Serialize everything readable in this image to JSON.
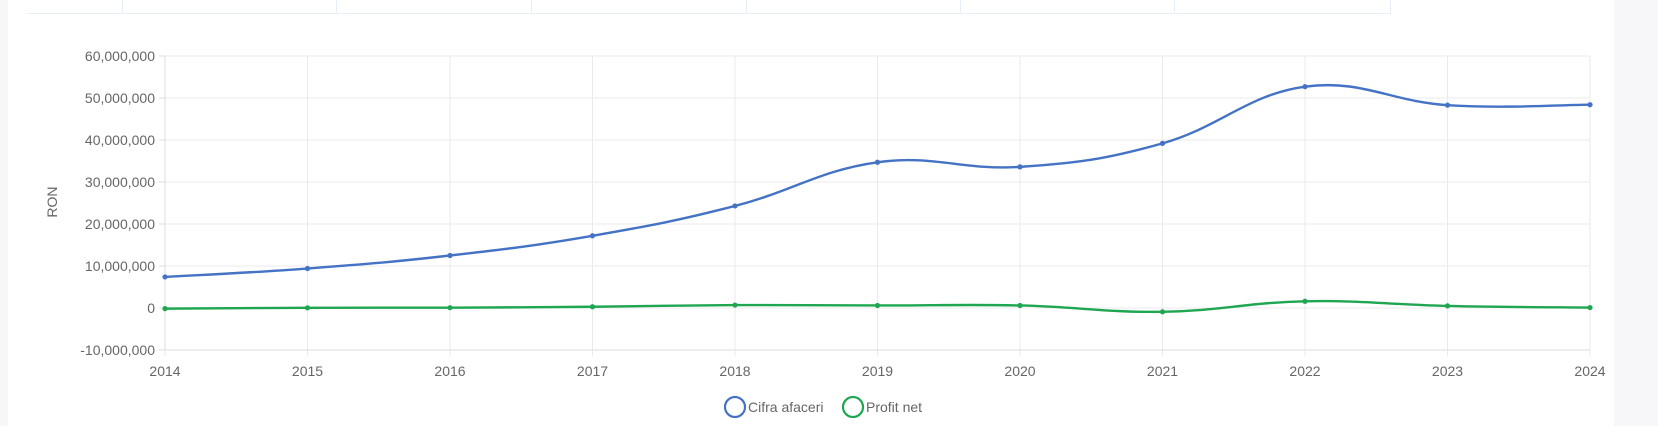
{
  "chart_data": {
    "type": "line",
    "title": "",
    "xlabel": "",
    "ylabel": "RON",
    "ylim": [
      -10000000,
      60000000
    ],
    "ytick_step": 10000000,
    "yticks": [
      "60,000,000",
      "50,000,000",
      "40,000,000",
      "30,000,000",
      "20,000,000",
      "10,000,000",
      "0",
      "-10,000,000"
    ],
    "x": [
      "2014",
      "2015",
      "2016",
      "2017",
      "2018",
      "2019",
      "2020",
      "2021",
      "2022",
      "2023",
      "2024"
    ],
    "series": [
      {
        "name": "Cifra afaceri",
        "color": "#4472c4",
        "values": [
          7400000,
          9400000,
          12500000,
          17200000,
          24300000,
          34700000,
          33600000,
          39200000,
          52700000,
          48300000,
          48400000
        ]
      },
      {
        "name": "Profit net",
        "color": "#1fa651",
        "values": [
          -150000,
          50000,
          80000,
          300000,
          700000,
          600000,
          600000,
          -900000,
          1600000,
          500000,
          100000
        ]
      }
    ],
    "grid": true,
    "legend": "bottom-center"
  }
}
